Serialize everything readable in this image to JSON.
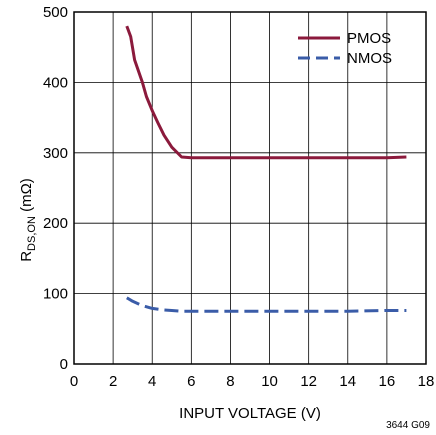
{
  "chart_data": {
    "type": "line",
    "xlabel": "INPUT VOLTAGE (V)",
    "ylabel": {
      "base": "R",
      "subscript": "DS,ON",
      "suffix": " (mΩ)"
    },
    "xlim": [
      0,
      18
    ],
    "ylim": [
      0,
      500
    ],
    "xticks": [
      "0",
      "2",
      "4",
      "6",
      "8",
      "10",
      "12",
      "14",
      "16",
      "18"
    ],
    "yticks": [
      "0",
      "100",
      "200",
      "300",
      "400",
      "500"
    ],
    "grid": true,
    "legend_position": "top-right",
    "series": [
      {
        "name": "PMOS",
        "color": "#8b1a3c",
        "style": "solid",
        "points": [
          [
            2.7,
            480
          ],
          [
            2.9,
            465
          ],
          [
            3.1,
            432
          ],
          [
            3.5,
            400
          ],
          [
            3.7,
            380
          ],
          [
            4.0,
            360
          ],
          [
            4.3,
            342
          ],
          [
            4.6,
            325
          ],
          [
            5.0,
            308
          ],
          [
            5.5,
            294
          ],
          [
            6.0,
            293
          ],
          [
            8.0,
            293
          ],
          [
            10.0,
            293
          ],
          [
            12.0,
            293
          ],
          [
            14.0,
            293
          ],
          [
            16.0,
            293
          ],
          [
            17.0,
            294
          ]
        ]
      },
      {
        "name": "NMOS",
        "color": "#3a5ca8",
        "style": "dashed",
        "points": [
          [
            2.7,
            94
          ],
          [
            3.0,
            89
          ],
          [
            3.5,
            83
          ],
          [
            4.0,
            79
          ],
          [
            4.5,
            77
          ],
          [
            5.0,
            76
          ],
          [
            5.5,
            75
          ],
          [
            6.0,
            75
          ],
          [
            8.0,
            75
          ],
          [
            10.0,
            75
          ],
          [
            12.0,
            75
          ],
          [
            14.0,
            75
          ],
          [
            16.0,
            76
          ],
          [
            17.0,
            76
          ]
        ]
      }
    ]
  },
  "figure_id": "3644 G09"
}
